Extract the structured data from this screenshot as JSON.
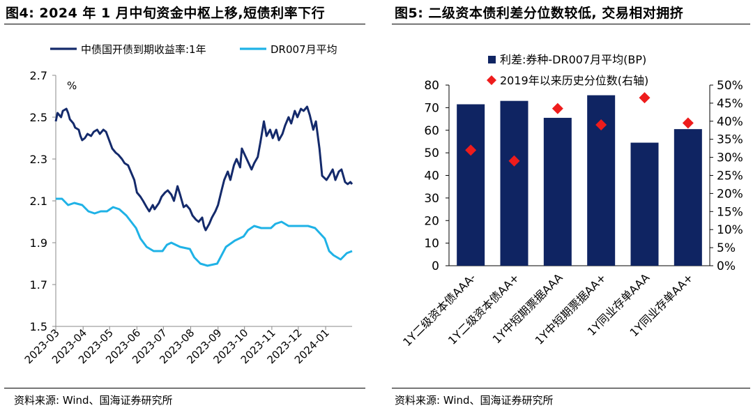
{
  "left_panel": {
    "title": "图4:  2024 年 1 月中旬资金中枢上移,短债利率下行",
    "source": "资料来源:  Wind、国海证券研究所"
  },
  "right_panel": {
    "title": "图5:  二级资本债利差分位数较低,  交易相对拥挤",
    "source": "资料来源:  Wind、国海证券研究所"
  },
  "colors": {
    "navy": "#142a6b",
    "light_blue": "#1fb2e6",
    "bar_navy": "#0f2462",
    "marker_red": "#ee1c1c"
  },
  "chart_data": [
    {
      "type": "line",
      "unit_label": "%",
      "ylim": [
        1.5,
        2.7
      ],
      "yticks": [
        "1.5",
        "1.7",
        "1.9",
        "2.1",
        "2.3",
        "2.5",
        "2.7"
      ],
      "x_tick_labels": [
        "2023-03",
        "2023-04",
        "2023-05",
        "2023-06",
        "2023-07",
        "2023-08",
        "2023-09",
        "2023-10",
        "2023-11",
        "2023-12",
        "2024-01"
      ],
      "x_start": "2023-03-01",
      "x_end": "2024-01-31",
      "grid": false,
      "legend_position": "top",
      "series": [
        {
          "name": "中债国开债到期收益率:1年",
          "color": "#142a6b",
          "points": [
            [
              "2023-03-01",
              2.48
            ],
            [
              "2023-03-03",
              2.52
            ],
            [
              "2023-03-07",
              2.5
            ],
            [
              "2023-03-09",
              2.53
            ],
            [
              "2023-03-13",
              2.54
            ],
            [
              "2023-03-15",
              2.52
            ],
            [
              "2023-03-17",
              2.49
            ],
            [
              "2023-03-21",
              2.47
            ],
            [
              "2023-03-23",
              2.45
            ],
            [
              "2023-03-27",
              2.44
            ],
            [
              "2023-03-29",
              2.41
            ],
            [
              "2023-03-31",
              2.39
            ],
            [
              "2023-04-03",
              2.4
            ],
            [
              "2023-04-06",
              2.42
            ],
            [
              "2023-04-10",
              2.41
            ],
            [
              "2023-04-13",
              2.43
            ],
            [
              "2023-04-17",
              2.44
            ],
            [
              "2023-04-20",
              2.42
            ],
            [
              "2023-04-24",
              2.44
            ],
            [
              "2023-04-27",
              2.43
            ],
            [
              "2023-05-04",
              2.35
            ],
            [
              "2023-05-08",
              2.33
            ],
            [
              "2023-05-11",
              2.32
            ],
            [
              "2023-05-15",
              2.3
            ],
            [
              "2023-05-18",
              2.28
            ],
            [
              "2023-05-22",
              2.27
            ],
            [
              "2023-05-25",
              2.24
            ],
            [
              "2023-05-29",
              2.2
            ],
            [
              "2023-06-01",
              2.14
            ],
            [
              "2023-06-05",
              2.12
            ],
            [
              "2023-06-08",
              2.1
            ],
            [
              "2023-06-12",
              2.07
            ],
            [
              "2023-06-15",
              2.05
            ],
            [
              "2023-06-19",
              2.08
            ],
            [
              "2023-06-21",
              2.06
            ],
            [
              "2023-06-26",
              2.09
            ],
            [
              "2023-06-29",
              2.12
            ],
            [
              "2023-07-03",
              2.14
            ],
            [
              "2023-07-06",
              2.15
            ],
            [
              "2023-07-10",
              2.13
            ],
            [
              "2023-07-13",
              2.1
            ],
            [
              "2023-07-17",
              2.17
            ],
            [
              "2023-07-20",
              2.13
            ],
            [
              "2023-07-24",
              2.07
            ],
            [
              "2023-07-27",
              2.08
            ],
            [
              "2023-07-31",
              2.06
            ],
            [
              "2023-08-03",
              2.03
            ],
            [
              "2023-08-07",
              2.01
            ],
            [
              "2023-08-10",
              2.0
            ],
            [
              "2023-08-14",
              2.02
            ],
            [
              "2023-08-16",
              1.98
            ],
            [
              "2023-08-18",
              1.96
            ],
            [
              "2023-08-22",
              1.99
            ],
            [
              "2023-08-25",
              2.02
            ],
            [
              "2023-08-29",
              2.05
            ],
            [
              "2023-09-01",
              2.08
            ],
            [
              "2023-09-05",
              2.15
            ],
            [
              "2023-09-08",
              2.2
            ],
            [
              "2023-09-12",
              2.24
            ],
            [
              "2023-09-15",
              2.2
            ],
            [
              "2023-09-19",
              2.27
            ],
            [
              "2023-09-22",
              2.3
            ],
            [
              "2023-09-26",
              2.26
            ],
            [
              "2023-09-28",
              2.35
            ],
            [
              "2023-10-09",
              2.25
            ],
            [
              "2023-10-12",
              2.28
            ],
            [
              "2023-10-16",
              2.31
            ],
            [
              "2023-10-19",
              2.38
            ],
            [
              "2023-10-23",
              2.48
            ],
            [
              "2023-10-26",
              2.41
            ],
            [
              "2023-10-30",
              2.44
            ],
            [
              "2023-11-02",
              2.4
            ],
            [
              "2023-11-06",
              2.44
            ],
            [
              "2023-11-09",
              2.39
            ],
            [
              "2023-11-13",
              2.42
            ],
            [
              "2023-11-16",
              2.46
            ],
            [
              "2023-11-20",
              2.5
            ],
            [
              "2023-11-23",
              2.47
            ],
            [
              "2023-11-27",
              2.53
            ],
            [
              "2023-11-30",
              2.5
            ],
            [
              "2023-12-04",
              2.54
            ],
            [
              "2023-12-07",
              2.53
            ],
            [
              "2023-12-11",
              2.55
            ],
            [
              "2023-12-14",
              2.51
            ],
            [
              "2023-12-18",
              2.44
            ],
            [
              "2023-12-21",
              2.48
            ],
            [
              "2023-12-25",
              2.35
            ],
            [
              "2023-12-28",
              2.22
            ],
            [
              "2024-01-02",
              2.2
            ],
            [
              "2024-01-05",
              2.22
            ],
            [
              "2024-01-09",
              2.25
            ],
            [
              "2024-01-12",
              2.2
            ],
            [
              "2024-01-16",
              2.24
            ],
            [
              "2024-01-19",
              2.25
            ],
            [
              "2024-01-23",
              2.19
            ],
            [
              "2024-01-26",
              2.18
            ],
            [
              "2024-01-29",
              2.19
            ],
            [
              "2024-01-31",
              2.18
            ]
          ]
        },
        {
          "name": "DR007月平均",
          "color": "#1fb2e6",
          "points": [
            [
              "2023-03-01",
              2.11
            ],
            [
              "2023-03-08",
              2.11
            ],
            [
              "2023-03-15",
              2.08
            ],
            [
              "2023-03-22",
              2.09
            ],
            [
              "2023-03-31",
              2.08
            ],
            [
              "2023-04-07",
              2.05
            ],
            [
              "2023-04-14",
              2.04
            ],
            [
              "2023-04-21",
              2.05
            ],
            [
              "2023-04-28",
              2.05
            ],
            [
              "2023-05-05",
              2.07
            ],
            [
              "2023-05-12",
              2.06
            ],
            [
              "2023-05-20",
              2.03
            ],
            [
              "2023-05-31",
              1.97
            ],
            [
              "2023-06-05",
              1.92
            ],
            [
              "2023-06-12",
              1.88
            ],
            [
              "2023-06-20",
              1.86
            ],
            [
              "2023-06-30",
              1.86
            ],
            [
              "2023-07-05",
              1.89
            ],
            [
              "2023-07-10",
              1.9
            ],
            [
              "2023-07-20",
              1.88
            ],
            [
              "2023-07-31",
              1.87
            ],
            [
              "2023-08-05",
              1.83
            ],
            [
              "2023-08-12",
              1.8
            ],
            [
              "2023-08-20",
              1.79
            ],
            [
              "2023-08-31",
              1.8
            ],
            [
              "2023-09-05",
              1.84
            ],
            [
              "2023-09-10",
              1.88
            ],
            [
              "2023-09-20",
              1.91
            ],
            [
              "2023-09-30",
              1.93
            ],
            [
              "2023-10-05",
              1.96
            ],
            [
              "2023-10-12",
              1.98
            ],
            [
              "2023-10-20",
              1.97
            ],
            [
              "2023-10-31",
              1.97
            ],
            [
              "2023-11-05",
              1.99
            ],
            [
              "2023-11-12",
              2.0
            ],
            [
              "2023-11-20",
              1.98
            ],
            [
              "2023-11-30",
              1.98
            ],
            [
              "2023-12-05",
              1.98
            ],
            [
              "2023-12-12",
              1.98
            ],
            [
              "2023-12-20",
              1.97
            ],
            [
              "2023-12-31",
              1.92
            ],
            [
              "2024-01-05",
              1.86
            ],
            [
              "2024-01-10",
              1.84
            ],
            [
              "2024-01-18",
              1.82
            ],
            [
              "2024-01-25",
              1.85
            ],
            [
              "2024-01-31",
              1.86
            ]
          ]
        }
      ]
    },
    {
      "type": "bar",
      "categories": [
        "1Y二级资本债AAA-",
        "1Y二级资本债AA+",
        "1Y中短期票据AAA",
        "1Y中短期票据AA+",
        "1Y同业存单AAA",
        "1Y同业存单AA+"
      ],
      "series": [
        {
          "name": "利差:券种-DR007月平均(BP)",
          "type": "bar",
          "axis": "left",
          "color": "#0f2462",
          "values": [
            71.5,
            73.0,
            65.5,
            75.5,
            54.5,
            60.5
          ]
        },
        {
          "name": "2019年以来历史分位数(右轴)",
          "type": "scatter",
          "axis": "right",
          "marker": "diamond",
          "color": "#ee1c1c",
          "values": [
            32.0,
            29.0,
            43.5,
            39.0,
            46.5,
            39.5
          ]
        }
      ],
      "ylim_left": [
        0,
        80
      ],
      "yticks_left": [
        "0",
        "10",
        "20",
        "30",
        "40",
        "50",
        "60",
        "70",
        "80"
      ],
      "ylim_right": [
        0,
        50
      ],
      "yticks_right": [
        "0%",
        "5%",
        "10%",
        "15%",
        "20%",
        "25%",
        "30%",
        "35%",
        "40%",
        "45%",
        "50%"
      ],
      "grid": false,
      "legend_position": "top"
    }
  ]
}
